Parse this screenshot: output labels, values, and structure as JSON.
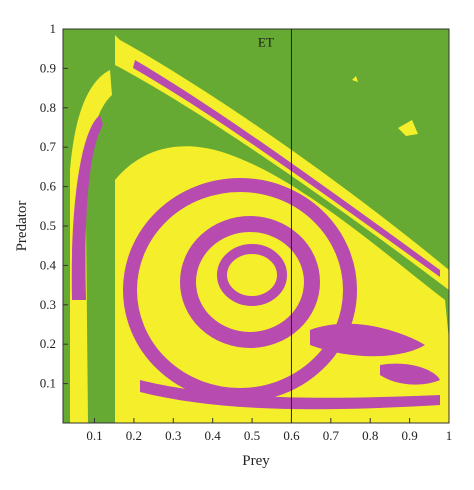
{
  "chart_data": {
    "type": "heatmap",
    "title": "",
    "xlabel": "Prey",
    "ylabel": "Predator",
    "xlim": [
      0.02,
      1.0
    ],
    "ylim": [
      0.0,
      1.0
    ],
    "x_ticks": [
      {
        "value": 0.1,
        "label": "0.1"
      },
      {
        "value": 0.2,
        "label": "0.2"
      },
      {
        "value": 0.3,
        "label": "0.3"
      },
      {
        "value": 0.4,
        "label": "0.4"
      },
      {
        "value": 0.5,
        "label": "0.5"
      },
      {
        "value": 0.6,
        "label": "0.6"
      },
      {
        "value": 0.7,
        "label": "0.7"
      },
      {
        "value": 0.8,
        "label": "0.8"
      },
      {
        "value": 0.9,
        "label": "0.9"
      },
      {
        "value": 1.0,
        "label": "1"
      }
    ],
    "y_ticks": [
      {
        "value": 0.1,
        "label": "0.1"
      },
      {
        "value": 0.2,
        "label": "0.2"
      },
      {
        "value": 0.3,
        "label": "0.3"
      },
      {
        "value": 0.4,
        "label": "0.4"
      },
      {
        "value": 0.5,
        "label": "0.5"
      },
      {
        "value": 0.6,
        "label": "0.6"
      },
      {
        "value": 0.7,
        "label": "0.7"
      },
      {
        "value": 0.8,
        "label": "0.8"
      },
      {
        "value": 0.9,
        "label": "0.9"
      },
      {
        "value": 1.0,
        "label": "1"
      }
    ],
    "region_colors": {
      "green": "#66aa33",
      "yellow": "#f4ef2a",
      "magenta": "#b74bb0"
    },
    "reference_line": {
      "x": 0.6,
      "label": "ET",
      "label_x": 0.535,
      "label_y": 0.955
    },
    "grid": false,
    "legend": "none"
  }
}
